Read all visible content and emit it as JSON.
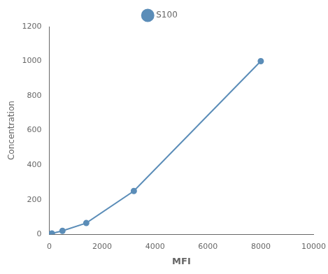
{
  "chart_data": {
    "type": "line",
    "x": [
      0,
      100,
      500,
      1400,
      3200,
      8000
    ],
    "series": [
      {
        "name": "S100",
        "color": "#5B8DB8",
        "values": [
          0,
          5,
          20,
          65,
          250,
          1000
        ],
        "marker": "circle",
        "line_style": "solid"
      }
    ],
    "xlabel": "MFI",
    "ylabel": "Concentration",
    "xlim": [
      0,
      10000
    ],
    "ylim": [
      0,
      1200
    ],
    "xticks": [
      0,
      2000,
      4000,
      6000,
      8000,
      10000
    ],
    "yticks": [
      0,
      200,
      400,
      600,
      800,
      1000,
      1200
    ],
    "grid": false,
    "legend": "top"
  }
}
